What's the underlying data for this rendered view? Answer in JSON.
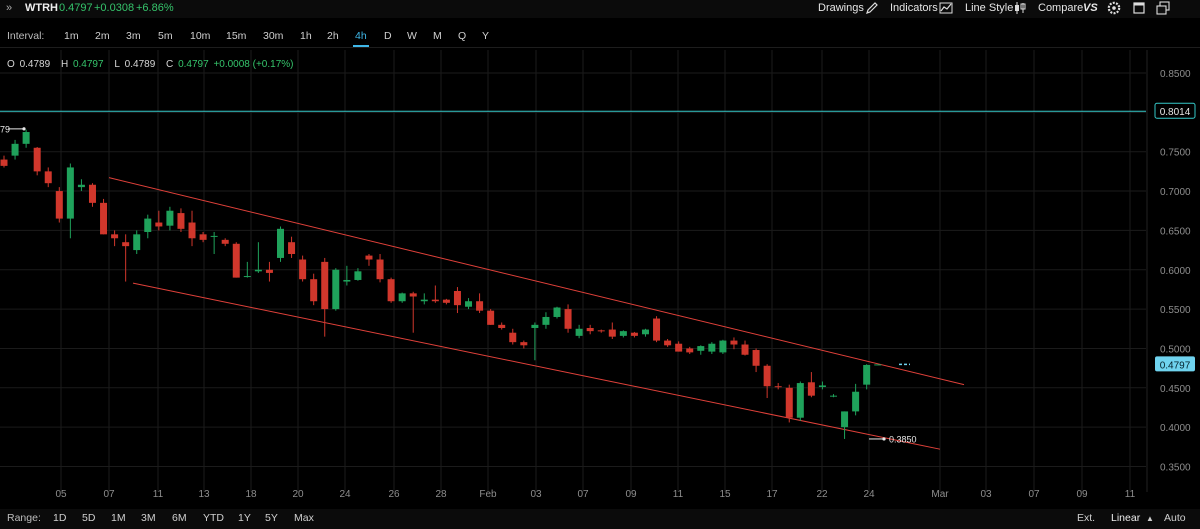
{
  "header": {
    "expand_glyph": "»",
    "symbol": "WTRH",
    "last": "0.4797",
    "change": "+0.0308",
    "change_pct": "+6.86%",
    "menu": {
      "drawings": "Drawings",
      "indicators": "Indicators",
      "line_style": "Line Style",
      "compare": "Compare",
      "compare_badge": "VS"
    },
    "icons": [
      "pencil-icon",
      "trend-icon",
      "candles-icon",
      "settings-icon",
      "single-window-icon",
      "multi-window-icon"
    ]
  },
  "interval_bar": {
    "label": "Interval:",
    "options": [
      "1m",
      "2m",
      "3m",
      "5m",
      "10m",
      "15m",
      "30m",
      "1h",
      "2h",
      "4h",
      "D",
      "W",
      "M",
      "Q",
      "Y"
    ],
    "active": "4h"
  },
  "ohlc": {
    "o_label": "O",
    "o": "0.4789",
    "h_label": "H",
    "h": "0.4797",
    "l_label": "L",
    "l": "0.4789",
    "c_label": "C",
    "c": "0.4797",
    "chg": "+0.0008 (+0.17%)"
  },
  "bottom_bar": {
    "range_label": "Range:",
    "ranges": [
      "1D",
      "5D",
      "1M",
      "3M",
      "6M",
      "YTD",
      "1Y",
      "5Y",
      "Max"
    ],
    "ext": "Ext.",
    "scale": "Linear",
    "scale_caret": "▲",
    "auto": "Auto"
  },
  "chart_data": {
    "type": "candlestick",
    "ylim": [
      0.33,
      0.86
    ],
    "y_ticks": [
      "0.8500",
      "0.8000",
      "0.7500",
      "0.7000",
      "0.6500",
      "0.6000",
      "0.5500",
      "0.5000",
      "0.4500",
      "0.4000",
      "0.3500"
    ],
    "x_ticks": [
      "05",
      "07",
      "11",
      "13",
      "18",
      "20",
      "24",
      "26",
      "28",
      "Feb",
      "03",
      "07",
      "09",
      "11",
      "15",
      "17",
      "22",
      "24",
      "Mar",
      "03",
      "07",
      "09",
      "11"
    ],
    "colors": {
      "up": "#1fa25b",
      "down": "#d1372c",
      "channel": "#e0413a",
      "hline": "#35c9c9",
      "grid": "#1b1b1b",
      "axis_text": "#8e8e8e",
      "price_tag": "#6fd3ef"
    },
    "horizontal_line": {
      "value": 0.8014,
      "label": "0.8014"
    },
    "last_price_label": "0.4797",
    "high_marker_label": "79",
    "low_marker_label": "0.3850",
    "channel_upper": [
      [
        0.717,
        0.454
      ]
    ],
    "channel_lower": [
      [
        0.583,
        0.372
      ]
    ],
    "candles": [
      [
        0.74,
        0.745,
        0.73,
        0.732
      ],
      [
        0.745,
        0.765,
        0.74,
        0.76
      ],
      [
        0.76,
        0.778,
        0.755,
        0.775
      ],
      [
        0.755,
        0.756,
        0.72,
        0.725
      ],
      [
        0.725,
        0.73,
        0.705,
        0.71
      ],
      [
        0.7,
        0.705,
        0.66,
        0.665
      ],
      [
        0.665,
        0.735,
        0.64,
        0.73
      ],
      [
        0.705,
        0.715,
        0.7,
        0.708
      ],
      [
        0.708,
        0.71,
        0.68,
        0.685
      ],
      [
        0.685,
        0.69,
        0.645,
        0.645
      ],
      [
        0.645,
        0.65,
        0.63,
        0.64
      ],
      [
        0.635,
        0.645,
        0.585,
        0.63
      ],
      [
        0.625,
        0.65,
        0.62,
        0.645
      ],
      [
        0.648,
        0.67,
        0.64,
        0.665
      ],
      [
        0.66,
        0.675,
        0.65,
        0.655
      ],
      [
        0.656,
        0.68,
        0.65,
        0.675
      ],
      [
        0.672,
        0.678,
        0.648,
        0.652
      ],
      [
        0.66,
        0.675,
        0.63,
        0.64
      ],
      [
        0.645,
        0.648,
        0.635,
        0.638
      ],
      [
        0.643,
        0.648,
        0.62,
        0.643
      ],
      [
        0.638,
        0.64,
        0.63,
        0.633
      ],
      [
        0.633,
        0.635,
        0.59,
        0.59
      ],
      [
        0.592,
        0.61,
        0.59,
        0.592
      ],
      [
        0.598,
        0.635,
        0.596,
        0.6
      ],
      [
        0.6,
        0.61,
        0.585,
        0.596
      ],
      [
        0.615,
        0.655,
        0.61,
        0.652
      ],
      [
        0.635,
        0.642,
        0.615,
        0.62
      ],
      [
        0.613,
        0.618,
        0.585,
        0.588
      ],
      [
        0.588,
        0.595,
        0.555,
        0.56
      ],
      [
        0.61,
        0.615,
        0.515,
        0.55
      ],
      [
        0.55,
        0.602,
        0.548,
        0.6
      ],
      [
        0.585,
        0.605,
        0.58,
        0.587
      ],
      [
        0.587,
        0.602,
        0.586,
        0.598
      ],
      [
        0.618,
        0.62,
        0.605,
        0.613
      ],
      [
        0.613,
        0.62,
        0.584,
        0.588
      ],
      [
        0.588,
        0.59,
        0.558,
        0.56
      ],
      [
        0.56,
        0.571,
        0.558,
        0.57
      ],
      [
        0.57,
        0.572,
        0.52,
        0.566
      ],
      [
        0.56,
        0.57,
        0.556,
        0.562
      ],
      [
        0.562,
        0.58,
        0.558,
        0.56
      ],
      [
        0.562,
        0.563,
        0.556,
        0.558
      ],
      [
        0.573,
        0.578,
        0.545,
        0.555
      ],
      [
        0.553,
        0.564,
        0.55,
        0.56
      ],
      [
        0.56,
        0.57,
        0.545,
        0.548
      ],
      [
        0.548,
        0.55,
        0.53,
        0.53
      ],
      [
        0.53,
        0.533,
        0.524,
        0.526
      ],
      [
        0.52,
        0.525,
        0.505,
        0.508
      ],
      [
        0.508,
        0.51,
        0.5,
        0.504
      ],
      [
        0.526,
        0.533,
        0.485,
        0.53
      ],
      [
        0.53,
        0.546,
        0.525,
        0.54
      ],
      [
        0.54,
        0.553,
        0.538,
        0.552
      ],
      [
        0.55,
        0.556,
        0.52,
        0.525
      ],
      [
        0.516,
        0.53,
        0.513,
        0.525
      ],
      [
        0.526,
        0.53,
        0.518,
        0.522
      ],
      [
        0.523,
        0.524,
        0.52,
        0.522
      ],
      [
        0.524,
        0.533,
        0.512,
        0.515
      ],
      [
        0.516,
        0.523,
        0.514,
        0.522
      ],
      [
        0.52,
        0.521,
        0.514,
        0.516
      ],
      [
        0.518,
        0.525,
        0.515,
        0.524
      ],
      [
        0.538,
        0.541,
        0.508,
        0.51
      ],
      [
        0.51,
        0.512,
        0.502,
        0.504
      ],
      [
        0.506,
        0.509,
        0.496,
        0.496
      ],
      [
        0.5,
        0.502,
        0.493,
        0.495
      ],
      [
        0.497,
        0.504,
        0.492,
        0.503
      ],
      [
        0.496,
        0.508,
        0.493,
        0.506
      ],
      [
        0.495,
        0.511,
        0.493,
        0.51
      ],
      [
        0.51,
        0.514,
        0.499,
        0.505
      ],
      [
        0.505,
        0.51,
        0.491,
        0.492
      ],
      [
        0.498,
        0.5,
        0.47,
        0.478
      ],
      [
        0.478,
        0.48,
        0.437,
        0.452
      ],
      [
        0.452,
        0.456,
        0.448,
        0.451
      ],
      [
        0.45,
        0.454,
        0.406,
        0.412
      ],
      [
        0.412,
        0.458,
        0.408,
        0.456
      ],
      [
        0.457,
        0.47,
        0.438,
        0.44
      ],
      [
        0.451,
        0.458,
        0.448,
        0.453
      ],
      [
        0.44,
        0.442,
        0.438,
        0.44
      ],
      [
        0.4,
        0.42,
        0.385,
        0.42
      ],
      [
        0.42,
        0.455,
        0.415,
        0.445
      ],
      [
        0.454,
        0.48,
        0.448,
        0.479
      ],
      [
        0.4789,
        0.4797,
        0.4789,
        0.4797
      ]
    ]
  }
}
